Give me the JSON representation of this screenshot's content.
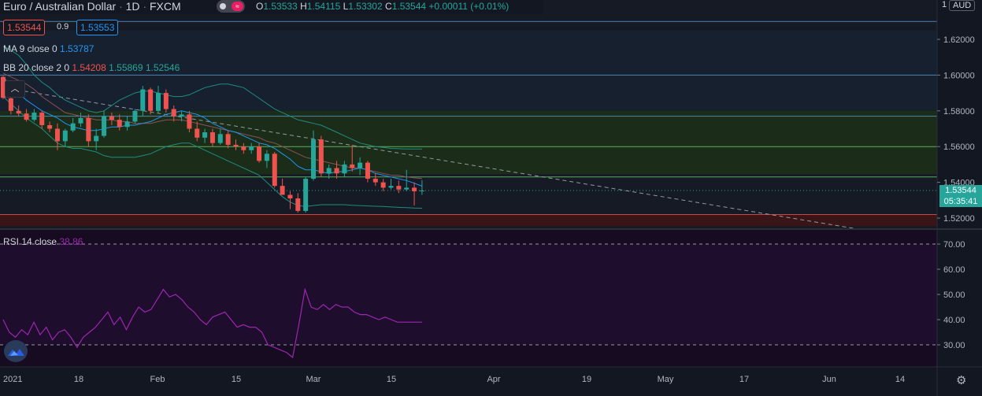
{
  "header": {
    "symbol": "Euro / Australian Dollar",
    "interval": "1D",
    "exchange": "FXCM",
    "ohlc": {
      "o_label": "O",
      "o": "1.53533",
      "h_label": "H",
      "h": "1.54115",
      "l_label": "L",
      "l": "1.53302",
      "c_label": "C",
      "c": "1.53544",
      "change": "+0.00011 (+0.01%)"
    },
    "toggle_symbol": "≈",
    "sell_price": "1.53544",
    "spread": "0.9",
    "buy_price": "1.53553",
    "currency": "AUD"
  },
  "indicators": {
    "ma": {
      "label": "MA 9 close 0",
      "value": "1.53787",
      "color": "#2196f3"
    },
    "bb": {
      "label": "BB 20 close 2 0",
      "basis": "1.54208",
      "upper": "1.55869",
      "lower": "1.52546",
      "basis_color": "#f23645",
      "band_color": "#26a69a"
    },
    "rsi": {
      "label": "RSI 14 close",
      "value": "38.86",
      "color": "#9c27b0"
    }
  },
  "price_axis": {
    "ticks": [
      "1.62000",
      "1.60000",
      "1.58000",
      "1.56000",
      "1.54000",
      "1.52000"
    ],
    "top_value": "1",
    "last_price": "1.53544",
    "countdown": "05:35:41"
  },
  "rsi_axis": {
    "ticks": [
      "70.00",
      "60.00",
      "50.00",
      "40.00",
      "30.00"
    ]
  },
  "time_axis": {
    "ticks": [
      "2021",
      "18",
      "Feb",
      "15",
      "Mar",
      "15",
      "Apr",
      "19",
      "May",
      "17",
      "Jun",
      "14"
    ]
  },
  "colors": {
    "up": "#26a69a",
    "down": "#ef5350",
    "zone_green": "#1b2d18",
    "zone_red": "#3a1518",
    "zone_blue": "#16202e",
    "rsi_bg": "#160b20",
    "rsi_band": "#1e0d2c"
  },
  "chart_data": [
    {
      "type": "candlestick",
      "title": "Euro / Australian Dollar · 1D · FXCM",
      "ylim": [
        1.5134,
        1.6372
      ],
      "candles": [
        {
          "o": 1.599,
          "h": 1.5995,
          "l": 1.5866,
          "c": 1.5873
        },
        {
          "o": 1.587,
          "h": 1.588,
          "l": 1.578,
          "c": 1.58
        },
        {
          "o": 1.58,
          "h": 1.583,
          "l": 1.577,
          "c": 1.5785
        },
        {
          "o": 1.5785,
          "h": 1.581,
          "l": 1.574,
          "c": 1.575
        },
        {
          "o": 1.575,
          "h": 1.581,
          "l": 1.574,
          "c": 1.579
        },
        {
          "o": 1.579,
          "h": 1.58,
          "l": 1.57,
          "c": 1.572
        },
        {
          "o": 1.572,
          "h": 1.574,
          "l": 1.568,
          "c": 1.57
        },
        {
          "o": 1.57,
          "h": 1.573,
          "l": 1.558,
          "c": 1.563
        },
        {
          "o": 1.563,
          "h": 1.57,
          "l": 1.56,
          "c": 1.569
        },
        {
          "o": 1.569,
          "h": 1.576,
          "l": 1.568,
          "c": 1.573
        },
        {
          "o": 1.573,
          "h": 1.579,
          "l": 1.571,
          "c": 1.576
        },
        {
          "o": 1.576,
          "h": 1.578,
          "l": 1.56,
          "c": 1.563
        },
        {
          "o": 1.563,
          "h": 1.57,
          "l": 1.558,
          "c": 1.566
        },
        {
          "o": 1.566,
          "h": 1.58,
          "l": 1.565,
          "c": 1.577
        },
        {
          "o": 1.577,
          "h": 1.579,
          "l": 1.572,
          "c": 1.575
        },
        {
          "o": 1.575,
          "h": 1.578,
          "l": 1.569,
          "c": 1.571
        },
        {
          "o": 1.571,
          "h": 1.577,
          "l": 1.569,
          "c": 1.574
        },
        {
          "o": 1.574,
          "h": 1.581,
          "l": 1.573,
          "c": 1.58
        },
        {
          "o": 1.58,
          "h": 1.594,
          "l": 1.577,
          "c": 1.592
        },
        {
          "o": 1.592,
          "h": 1.593,
          "l": 1.578,
          "c": 1.58
        },
        {
          "o": 1.58,
          "h": 1.594,
          "l": 1.579,
          "c": 1.59
        },
        {
          "o": 1.59,
          "h": 1.592,
          "l": 1.579,
          "c": 1.581
        },
        {
          "o": 1.581,
          "h": 1.583,
          "l": 1.574,
          "c": 1.577
        },
        {
          "o": 1.577,
          "h": 1.58,
          "l": 1.574,
          "c": 1.578
        },
        {
          "o": 1.578,
          "h": 1.58,
          "l": 1.568,
          "c": 1.57
        },
        {
          "o": 1.57,
          "h": 1.574,
          "l": 1.563,
          "c": 1.565
        },
        {
          "o": 1.565,
          "h": 1.57,
          "l": 1.562,
          "c": 1.568
        },
        {
          "o": 1.568,
          "h": 1.57,
          "l": 1.56,
          "c": 1.562
        },
        {
          "o": 1.562,
          "h": 1.57,
          "l": 1.561,
          "c": 1.567
        },
        {
          "o": 1.567,
          "h": 1.569,
          "l": 1.559,
          "c": 1.561
        },
        {
          "o": 1.561,
          "h": 1.564,
          "l": 1.558,
          "c": 1.56
        },
        {
          "o": 1.56,
          "h": 1.562,
          "l": 1.556,
          "c": 1.558
        },
        {
          "o": 1.558,
          "h": 1.562,
          "l": 1.556,
          "c": 1.56
        },
        {
          "o": 1.56,
          "h": 1.562,
          "l": 1.551,
          "c": 1.552
        },
        {
          "o": 1.552,
          "h": 1.558,
          "l": 1.548,
          "c": 1.556
        },
        {
          "o": 1.556,
          "h": 1.557,
          "l": 1.537,
          "c": 1.538
        },
        {
          "o": 1.538,
          "h": 1.542,
          "l": 1.533,
          "c": 1.533
        },
        {
          "o": 1.533,
          "h": 1.535,
          "l": 1.525,
          "c": 1.531
        },
        {
          "o": 1.531,
          "h": 1.534,
          "l": 1.523,
          "c": 1.524
        },
        {
          "o": 1.524,
          "h": 1.543,
          "l": 1.523,
          "c": 1.542
        },
        {
          "o": 1.542,
          "h": 1.569,
          "l": 1.541,
          "c": 1.564
        },
        {
          "o": 1.564,
          "h": 1.566,
          "l": 1.543,
          "c": 1.545
        },
        {
          "o": 1.545,
          "h": 1.55,
          "l": 1.542,
          "c": 1.548
        },
        {
          "o": 1.548,
          "h": 1.552,
          "l": 1.542,
          "c": 1.545
        },
        {
          "o": 1.545,
          "h": 1.552,
          "l": 1.543,
          "c": 1.55
        },
        {
          "o": 1.55,
          "h": 1.561,
          "l": 1.546,
          "c": 1.548
        },
        {
          "o": 1.548,
          "h": 1.554,
          "l": 1.544,
          "c": 1.551
        },
        {
          "o": 1.551,
          "h": 1.552,
          "l": 1.54,
          "c": 1.542
        },
        {
          "o": 1.542,
          "h": 1.545,
          "l": 1.538,
          "c": 1.54
        },
        {
          "o": 1.54,
          "h": 1.542,
          "l": 1.535,
          "c": 1.537
        },
        {
          "o": 1.537,
          "h": 1.542,
          "l": 1.536,
          "c": 1.538
        },
        {
          "o": 1.538,
          "h": 1.541,
          "l": 1.534,
          "c": 1.536
        },
        {
          "o": 1.536,
          "h": 1.547,
          "l": 1.535,
          "c": 1.537
        },
        {
          "o": 1.537,
          "h": 1.54,
          "l": 1.527,
          "c": 1.535
        },
        {
          "o": 1.5353,
          "h": 1.5412,
          "l": 1.533,
          "c": 1.5354
        }
      ],
      "ma9": [
        1.599,
        1.594,
        1.59,
        1.586,
        1.583,
        1.58,
        1.578,
        1.576,
        1.573,
        1.571,
        1.57,
        1.569,
        1.569,
        1.57,
        1.571,
        1.571,
        1.572,
        1.572,
        1.573,
        1.574,
        1.576,
        1.578,
        1.579,
        1.58,
        1.579,
        1.578,
        1.576,
        1.573,
        1.571,
        1.569,
        1.568,
        1.566,
        1.564,
        1.562,
        1.561,
        1.559,
        1.556,
        1.553,
        1.549,
        1.547,
        1.547,
        1.546,
        1.545,
        1.546,
        1.546,
        1.547,
        1.548,
        1.547,
        1.545,
        1.544,
        1.543,
        1.542,
        1.541,
        1.5395,
        1.5379
      ],
      "bb_basis": [
        1.601,
        1.599,
        1.597,
        1.595,
        1.592,
        1.588,
        1.585,
        1.582,
        1.579,
        1.578,
        1.577,
        1.576,
        1.575,
        1.575,
        1.575,
        1.574,
        1.574,
        1.573,
        1.573,
        1.573,
        1.574,
        1.575,
        1.575,
        1.575,
        1.574,
        1.573,
        1.572,
        1.571,
        1.57,
        1.569,
        1.568,
        1.567,
        1.566,
        1.565,
        1.563,
        1.562,
        1.56,
        1.558,
        1.556,
        1.554,
        1.553,
        1.552,
        1.551,
        1.55,
        1.549,
        1.548,
        1.548,
        1.547,
        1.546,
        1.545,
        1.544,
        1.544,
        1.543,
        1.5425,
        1.5421
      ],
      "bb_upper": [
        1.616,
        1.614,
        1.611,
        1.606,
        1.6,
        1.596,
        1.593,
        1.589,
        1.586,
        1.584,
        1.582,
        1.58,
        1.579,
        1.58,
        1.583,
        1.586,
        1.588,
        1.59,
        1.591,
        1.591,
        1.59,
        1.589,
        1.588,
        1.588,
        1.589,
        1.591,
        1.593,
        1.594,
        1.595,
        1.595,
        1.594,
        1.593,
        1.59,
        1.587,
        1.584,
        1.581,
        1.579,
        1.577,
        1.575,
        1.574,
        1.573,
        1.572,
        1.57,
        1.568,
        1.566,
        1.564,
        1.562,
        1.561,
        1.56,
        1.5595,
        1.559,
        1.5588,
        1.5587,
        1.5587,
        1.5587
      ],
      "bb_lower": [
        1.588,
        1.584,
        1.58,
        1.576,
        1.573,
        1.57,
        1.566,
        1.562,
        1.56,
        1.559,
        1.559,
        1.558,
        1.557,
        1.555,
        1.554,
        1.554,
        1.554,
        1.554,
        1.555,
        1.556,
        1.558,
        1.56,
        1.561,
        1.562,
        1.562,
        1.56,
        1.558,
        1.556,
        1.554,
        1.552,
        1.55,
        1.548,
        1.546,
        1.544,
        1.54,
        1.536,
        1.532,
        1.529,
        1.527,
        1.5265,
        1.527,
        1.5275,
        1.5275,
        1.5275,
        1.5275,
        1.5272,
        1.527,
        1.5268,
        1.5266,
        1.5265,
        1.5262,
        1.526,
        1.5258,
        1.5256,
        1.5255
      ],
      "trendline": [
        {
          "i": 0,
          "v": 1.593
        },
        {
          "i": 110,
          "v": 1.514
        }
      ],
      "zones": [
        {
          "from": 1.58,
          "to": 1.625,
          "color": "zone_blue"
        },
        {
          "from": 1.5445,
          "to": 1.58,
          "color": "zone_green"
        },
        {
          "from": 1.5155,
          "to": 1.522,
          "color": "zone_red"
        }
      ],
      "levels": [
        1.63,
        1.6,
        1.577,
        1.56,
        1.543,
        1.522
      ]
    },
    {
      "type": "line",
      "title": "RSI 14 close",
      "ylim": [
        22.5,
        75.1
      ],
      "bands": [
        30,
        70
      ],
      "values": [
        40,
        35,
        33,
        36,
        34,
        39,
        34,
        37,
        32,
        35,
        36,
        33,
        29,
        33,
        35,
        37,
        40,
        43,
        38,
        41,
        36,
        41,
        45,
        43,
        44,
        48,
        52,
        49,
        50,
        48,
        45,
        43,
        40,
        38,
        41,
        42,
        43,
        40,
        37,
        38,
        37,
        37,
        35,
        30,
        29,
        28,
        27,
        25,
        38,
        52,
        45,
        44,
        46,
        44,
        46,
        45,
        45,
        43,
        42,
        42,
        41,
        40,
        41,
        40,
        39,
        39,
        39,
        39,
        39
      ]
    }
  ]
}
